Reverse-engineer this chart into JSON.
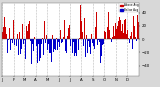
{
  "n_days": 365,
  "seed": 42,
  "ylim": [
    -55,
    55
  ],
  "yticks": [
    -40,
    -20,
    0,
    20,
    40
  ],
  "background_color": "#d8d8d8",
  "plot_bg": "#ffffff",
  "bar_color_pos": "#cc0000",
  "bar_color_neg": "#0000cc",
  "legend_colors": [
    "#cc0000",
    "#0000cc"
  ],
  "legend_labels": [
    "Above Avg",
    "Below Avg"
  ],
  "tick_fontsize": 2.8,
  "grid_color": "#888888",
  "grid_alpha": 0.6,
  "month_starts": [
    0,
    31,
    59,
    90,
    120,
    151,
    181,
    212,
    243,
    273,
    304,
    334
  ],
  "month_labels": [
    "J",
    "F",
    "M",
    "A",
    "M",
    "J",
    "J",
    "A",
    "S",
    "O",
    "N",
    "D"
  ]
}
